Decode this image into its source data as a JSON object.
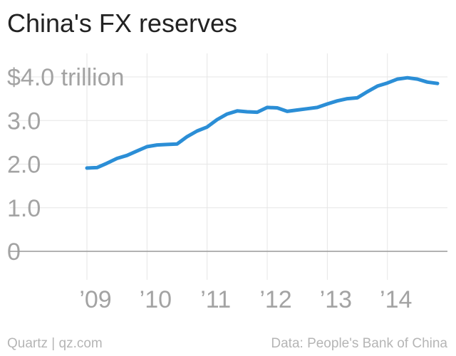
{
  "title": "China's FX reserves",
  "footer": {
    "source_left": "Quartz | qz.com",
    "source_right": "Data: People's Bank of China"
  },
  "colors": {
    "line": "#2b8ed6",
    "grid": "#e6e6e6",
    "axis": "#999999",
    "tick_text": "#a3a3a3",
    "title": "#222222"
  },
  "chart_data": {
    "type": "line",
    "title": "China's FX reserves",
    "xlabel": "",
    "ylabel": "",
    "ylim": [
      0,
      4.0
    ],
    "xlim": [
      "2008-07",
      "2015-03"
    ],
    "grid": true,
    "y_ticks": [
      {
        "value": 0,
        "label": "0"
      },
      {
        "value": 1.0,
        "label": "1.0"
      },
      {
        "value": 2.0,
        "label": "2.0"
      },
      {
        "value": 3.0,
        "label": "3.0"
      },
      {
        "value": 4.0,
        "label": "$4.0 trillion"
      }
    ],
    "x_ticks": [
      {
        "value": "2009-01",
        "label": "’09"
      },
      {
        "value": "2010-01",
        "label": "’10"
      },
      {
        "value": "2011-01",
        "label": "’11"
      },
      {
        "value": "2012-01",
        "label": "’12"
      },
      {
        "value": "2013-01",
        "label": "’13"
      },
      {
        "value": "2014-01",
        "label": "’14"
      }
    ],
    "series": [
      {
        "x": [
          "2009-01",
          "2009-03",
          "2009-05",
          "2009-07",
          "2009-09",
          "2009-11",
          "2010-01",
          "2010-03",
          "2010-05",
          "2010-07",
          "2010-09",
          "2010-11",
          "2011-01",
          "2011-03",
          "2011-05",
          "2011-07",
          "2011-09",
          "2011-11",
          "2012-01",
          "2012-03",
          "2012-05",
          "2012-07",
          "2012-09",
          "2012-11",
          "2013-01",
          "2013-03",
          "2013-05",
          "2013-07",
          "2013-09",
          "2013-11",
          "2014-01",
          "2014-03",
          "2014-05",
          "2014-07",
          "2014-09",
          "2014-11"
        ],
        "values": [
          1.91,
          1.92,
          2.02,
          2.13,
          2.2,
          2.3,
          2.4,
          2.44,
          2.45,
          2.46,
          2.63,
          2.76,
          2.85,
          3.02,
          3.15,
          3.22,
          3.2,
          3.19,
          3.3,
          3.29,
          3.21,
          3.24,
          3.27,
          3.3,
          3.38,
          3.45,
          3.5,
          3.52,
          3.66,
          3.79,
          3.86,
          3.95,
          3.98,
          3.95,
          3.88,
          3.85
        ]
      }
    ]
  }
}
